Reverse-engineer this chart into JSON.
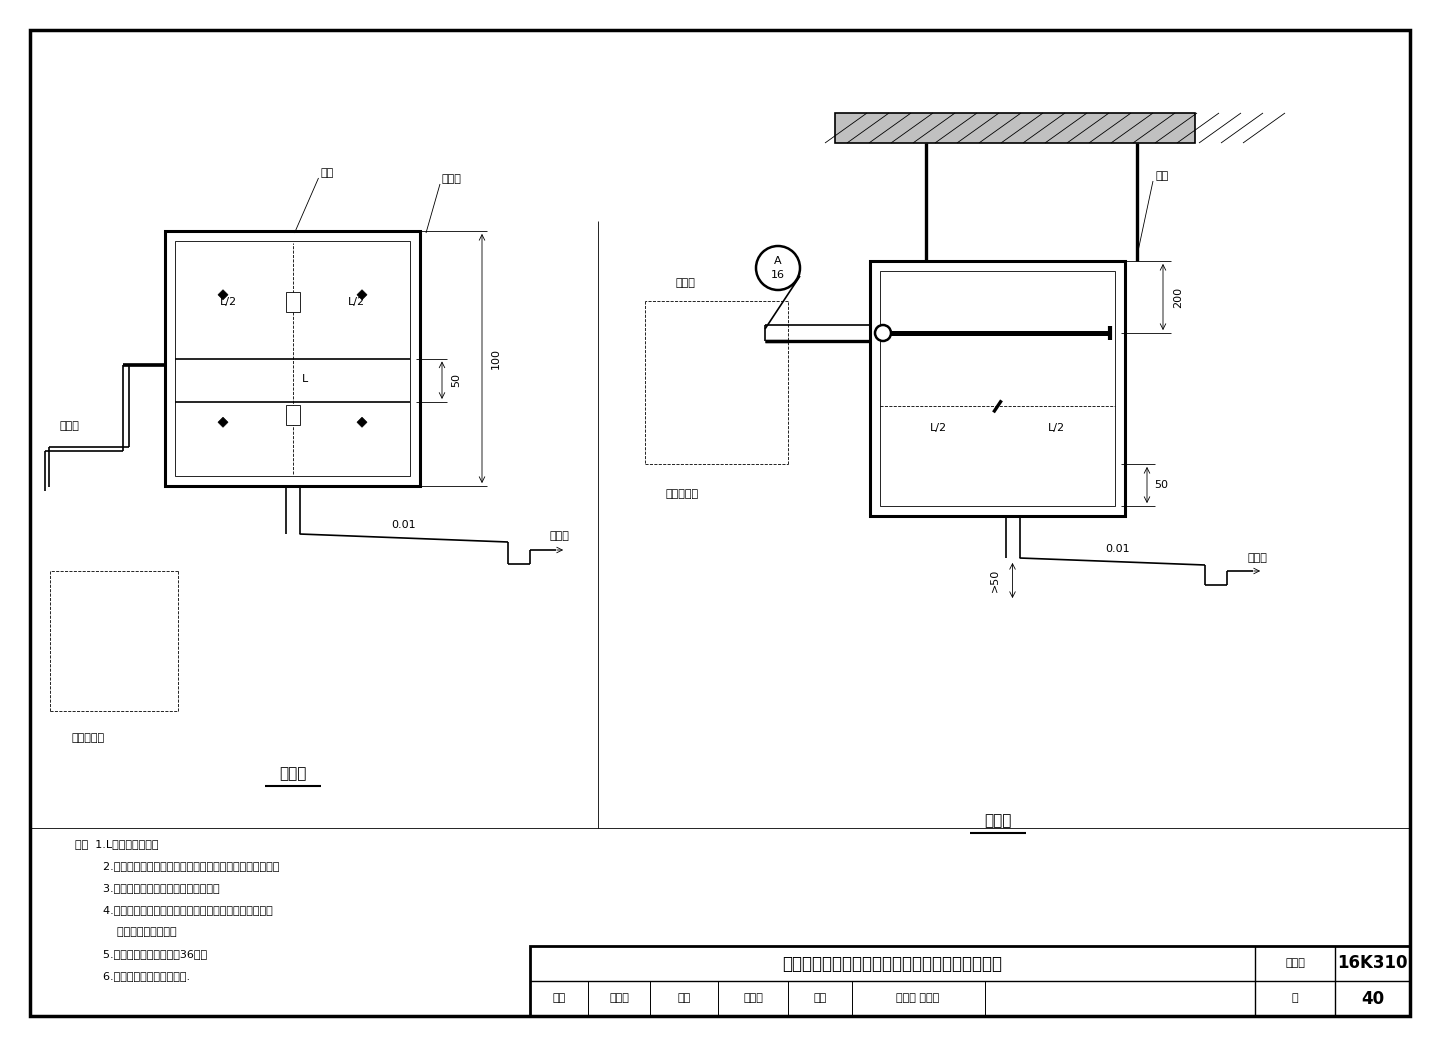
{
  "bg_color": "#ffffff",
  "lc": "#000000",
  "lw": 1.2,
  "thin": 0.6,
  "thick": 2.2,
  "fs": 9,
  "fs_s": 8,
  "fs_l": 11,
  "notes": [
    "注：  1.L为加湿器长度。",
    "        2.加湿器主机出口蒸汽软管及蒸汽嚙管根据设备型号选用。",
    "        3.加湿器拆下检修，吸顶预留检修口。",
    "        4.排水管接至排水明沟或机房地漏，具体做法由设计人员",
    "            根据实际情况确定。",
    "        5.安装要求详见本图集第36页。",
    "        6.图中所注尺寸均为最小値."
  ],
  "title_main": "电阔（电热）式、电极式加湿器风管内安装示意图",
  "label_atlas": "图集号",
  "value_atlas": "16K310",
  "label_audit": "审核",
  "value_audit": "徐立平",
  "label_check": "校对",
  "value_check": "刘海滨",
  "label_design": "设计",
  "value_design": "刘小文 刘小文",
  "label_page": "页",
  "value_page": "40"
}
